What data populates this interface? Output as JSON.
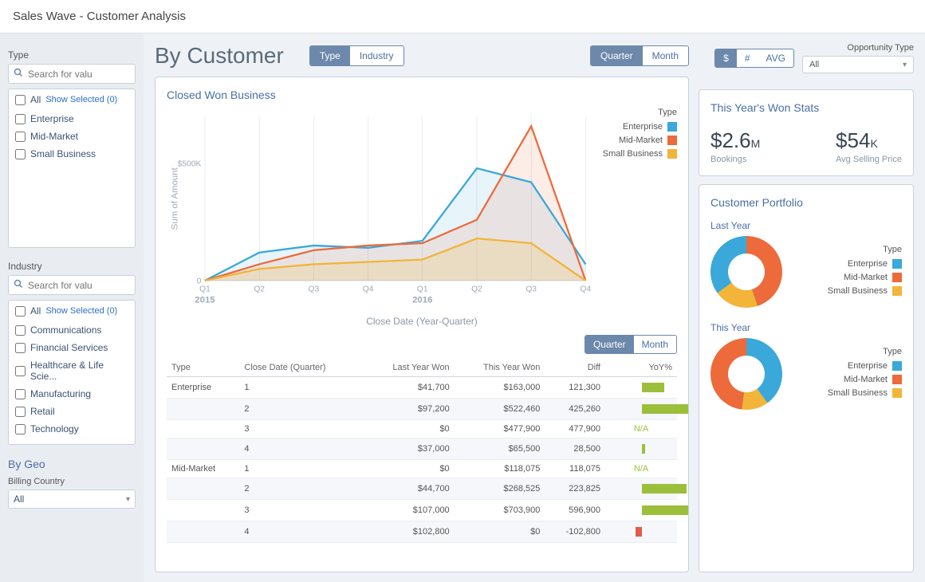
{
  "app_title": "Sales Wave - Customer Analysis",
  "sidebar": {
    "type": {
      "title": "Type",
      "search_placeholder": "Search for valu",
      "all_label": "All",
      "show_selected_label": "Show Selected (0)",
      "items": [
        "Enterprise",
        "Mid-Market",
        "Small Business"
      ]
    },
    "industry": {
      "title": "Industry",
      "search_placeholder": "Search for valu",
      "all_label": "All",
      "show_selected_label": "Show Selected (0)",
      "items": [
        "Communications",
        "Financial Services",
        "Healthcare & Life Scie...",
        "Manufacturing",
        "Retail",
        "Technology"
      ]
    },
    "geo": {
      "title": "By Geo",
      "label": "Billing Country",
      "value": "All"
    }
  },
  "header": {
    "heading": "By Customer",
    "seg_type_industry": {
      "options": [
        "Type",
        "Industry"
      ],
      "active": 0
    },
    "seg_quarter_month": {
      "options": [
        "Quarter",
        "Month"
      ],
      "active": 0
    },
    "seg_value": {
      "options": [
        "$",
        "#",
        "AVG"
      ],
      "active": 0
    },
    "opportunity_type": {
      "label": "Opportunity Type",
      "value": "All"
    }
  },
  "chart": {
    "title": "Closed Won Business",
    "y_axis_label": "Sum of Amount",
    "y_tick_label": "$500K",
    "y_max": 700000,
    "x_title": "Close Date (Year-Quarter)",
    "x_tick_labels": [
      "Q1",
      "Q2",
      "Q3",
      "Q4",
      "Q1",
      "Q2",
      "Q3",
      "Q4"
    ],
    "x_year_labels": {
      "0": "2015",
      "4": "2016"
    },
    "legend_title": "Type",
    "colors": {
      "enterprise": "#3aa8d8",
      "mid_market": "#ed6a3b",
      "small_business": "#f2b53a",
      "grid": "#d8dee6",
      "axis_text": "#a0aab6"
    },
    "series": {
      "enterprise": [
        0,
        120000,
        150000,
        140000,
        170000,
        480000,
        420000,
        70000
      ],
      "mid_market": [
        0,
        70000,
        130000,
        150000,
        160000,
        260000,
        660000,
        0
      ],
      "small_business": [
        0,
        50000,
        70000,
        80000,
        90000,
        180000,
        160000,
        0
      ]
    }
  },
  "table": {
    "seg_quarter_month": {
      "options": [
        "Quarter",
        "Month"
      ],
      "active": 0
    },
    "columns": [
      "Type",
      "Close Date (Quarter)",
      "Last Year Won",
      "This Year Won",
      "Diff",
      "YoY%"
    ],
    "rows": [
      {
        "type": "Enterprise",
        "q": "1",
        "last": "$41,700",
        "this": "$163,000",
        "diff": "121,300",
        "yoy": 0.35,
        "alt": false
      },
      {
        "type": "",
        "q": "2",
        "last": "$97,200",
        "this": "$522,460",
        "diff": "425,260",
        "yoy": 0.8,
        "alt": true
      },
      {
        "type": "",
        "q": "3",
        "last": "$0",
        "this": "$477,900",
        "diff": "477,900",
        "yoy": "N/A",
        "alt": false
      },
      {
        "type": "",
        "q": "4",
        "last": "$37,000",
        "this": "$65,500",
        "diff": "28,500",
        "yoy": 0.05,
        "alt": true
      },
      {
        "type": "Mid-Market",
        "q": "1",
        "last": "$0",
        "this": "$118,075",
        "diff": "118,075",
        "yoy": "N/A",
        "alt": false
      },
      {
        "type": "",
        "q": "2",
        "last": "$44,700",
        "this": "$268,525",
        "diff": "223,825",
        "yoy": 0.7,
        "alt": true
      },
      {
        "type": "",
        "q": "3",
        "last": "$107,000",
        "this": "$703,900",
        "diff": "596,900",
        "yoy": 0.9,
        "alt": false
      },
      {
        "type": "",
        "q": "4",
        "last": "$102,800",
        "this": "$0",
        "diff": "-102,800",
        "yoy": -0.1,
        "alt": true
      }
    ]
  },
  "stats": {
    "title": "This Year's Won Stats",
    "bookings_value": "$2.6",
    "bookings_suffix": "M",
    "bookings_label": "Bookings",
    "asp_value": "$54",
    "asp_suffix": "K",
    "asp_label": "Avg Selling Price"
  },
  "portfolio": {
    "title": "Customer Portfolio",
    "legend_title": "Type",
    "legend_items": [
      {
        "label": "Enterprise",
        "color": "#3aa8d8"
      },
      {
        "label": "Mid-Market",
        "color": "#ed6a3b"
      },
      {
        "label": "Small Business",
        "color": "#f2b53a"
      }
    ],
    "donuts": [
      {
        "heading": "Last Year",
        "slices": [
          {
            "color": "#ed6a3b",
            "pct": 45
          },
          {
            "color": "#f2b53a",
            "pct": 20
          },
          {
            "color": "#3aa8d8",
            "pct": 35
          }
        ]
      },
      {
        "heading": "This Year",
        "slices": [
          {
            "color": "#3aa8d8",
            "pct": 40
          },
          {
            "color": "#f2b53a",
            "pct": 12
          },
          {
            "color": "#ed6a3b",
            "pct": 48
          }
        ]
      }
    ]
  }
}
